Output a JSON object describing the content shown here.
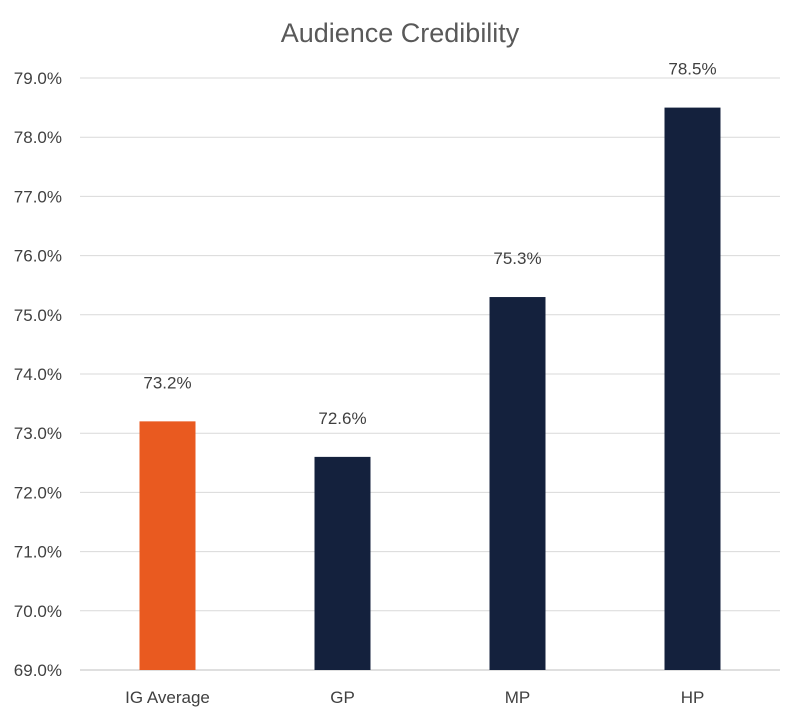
{
  "chart_data": {
    "type": "bar",
    "title": "Audience Credibility",
    "xlabel": "",
    "ylabel": "",
    "categories": [
      "IG Average",
      "GP",
      "MP",
      "HP"
    ],
    "values": [
      73.2,
      72.6,
      75.3,
      78.5
    ],
    "data_labels": [
      "73.2%",
      "72.6%",
      "75.3%",
      "78.5%"
    ],
    "bar_colors": [
      "#e95a20",
      "#14213d",
      "#14213d",
      "#14213d"
    ],
    "ylim": [
      69.0,
      79.0
    ],
    "yticks": [
      69.0,
      70.0,
      71.0,
      72.0,
      73.0,
      74.0,
      75.0,
      76.0,
      77.0,
      78.0,
      79.0
    ],
    "ytick_labels": [
      "69.0%",
      "70.0%",
      "71.0%",
      "72.0%",
      "73.0%",
      "74.0%",
      "75.0%",
      "76.0%",
      "77.0%",
      "78.0%",
      "79.0%"
    ],
    "grid": true,
    "legend": "none"
  }
}
